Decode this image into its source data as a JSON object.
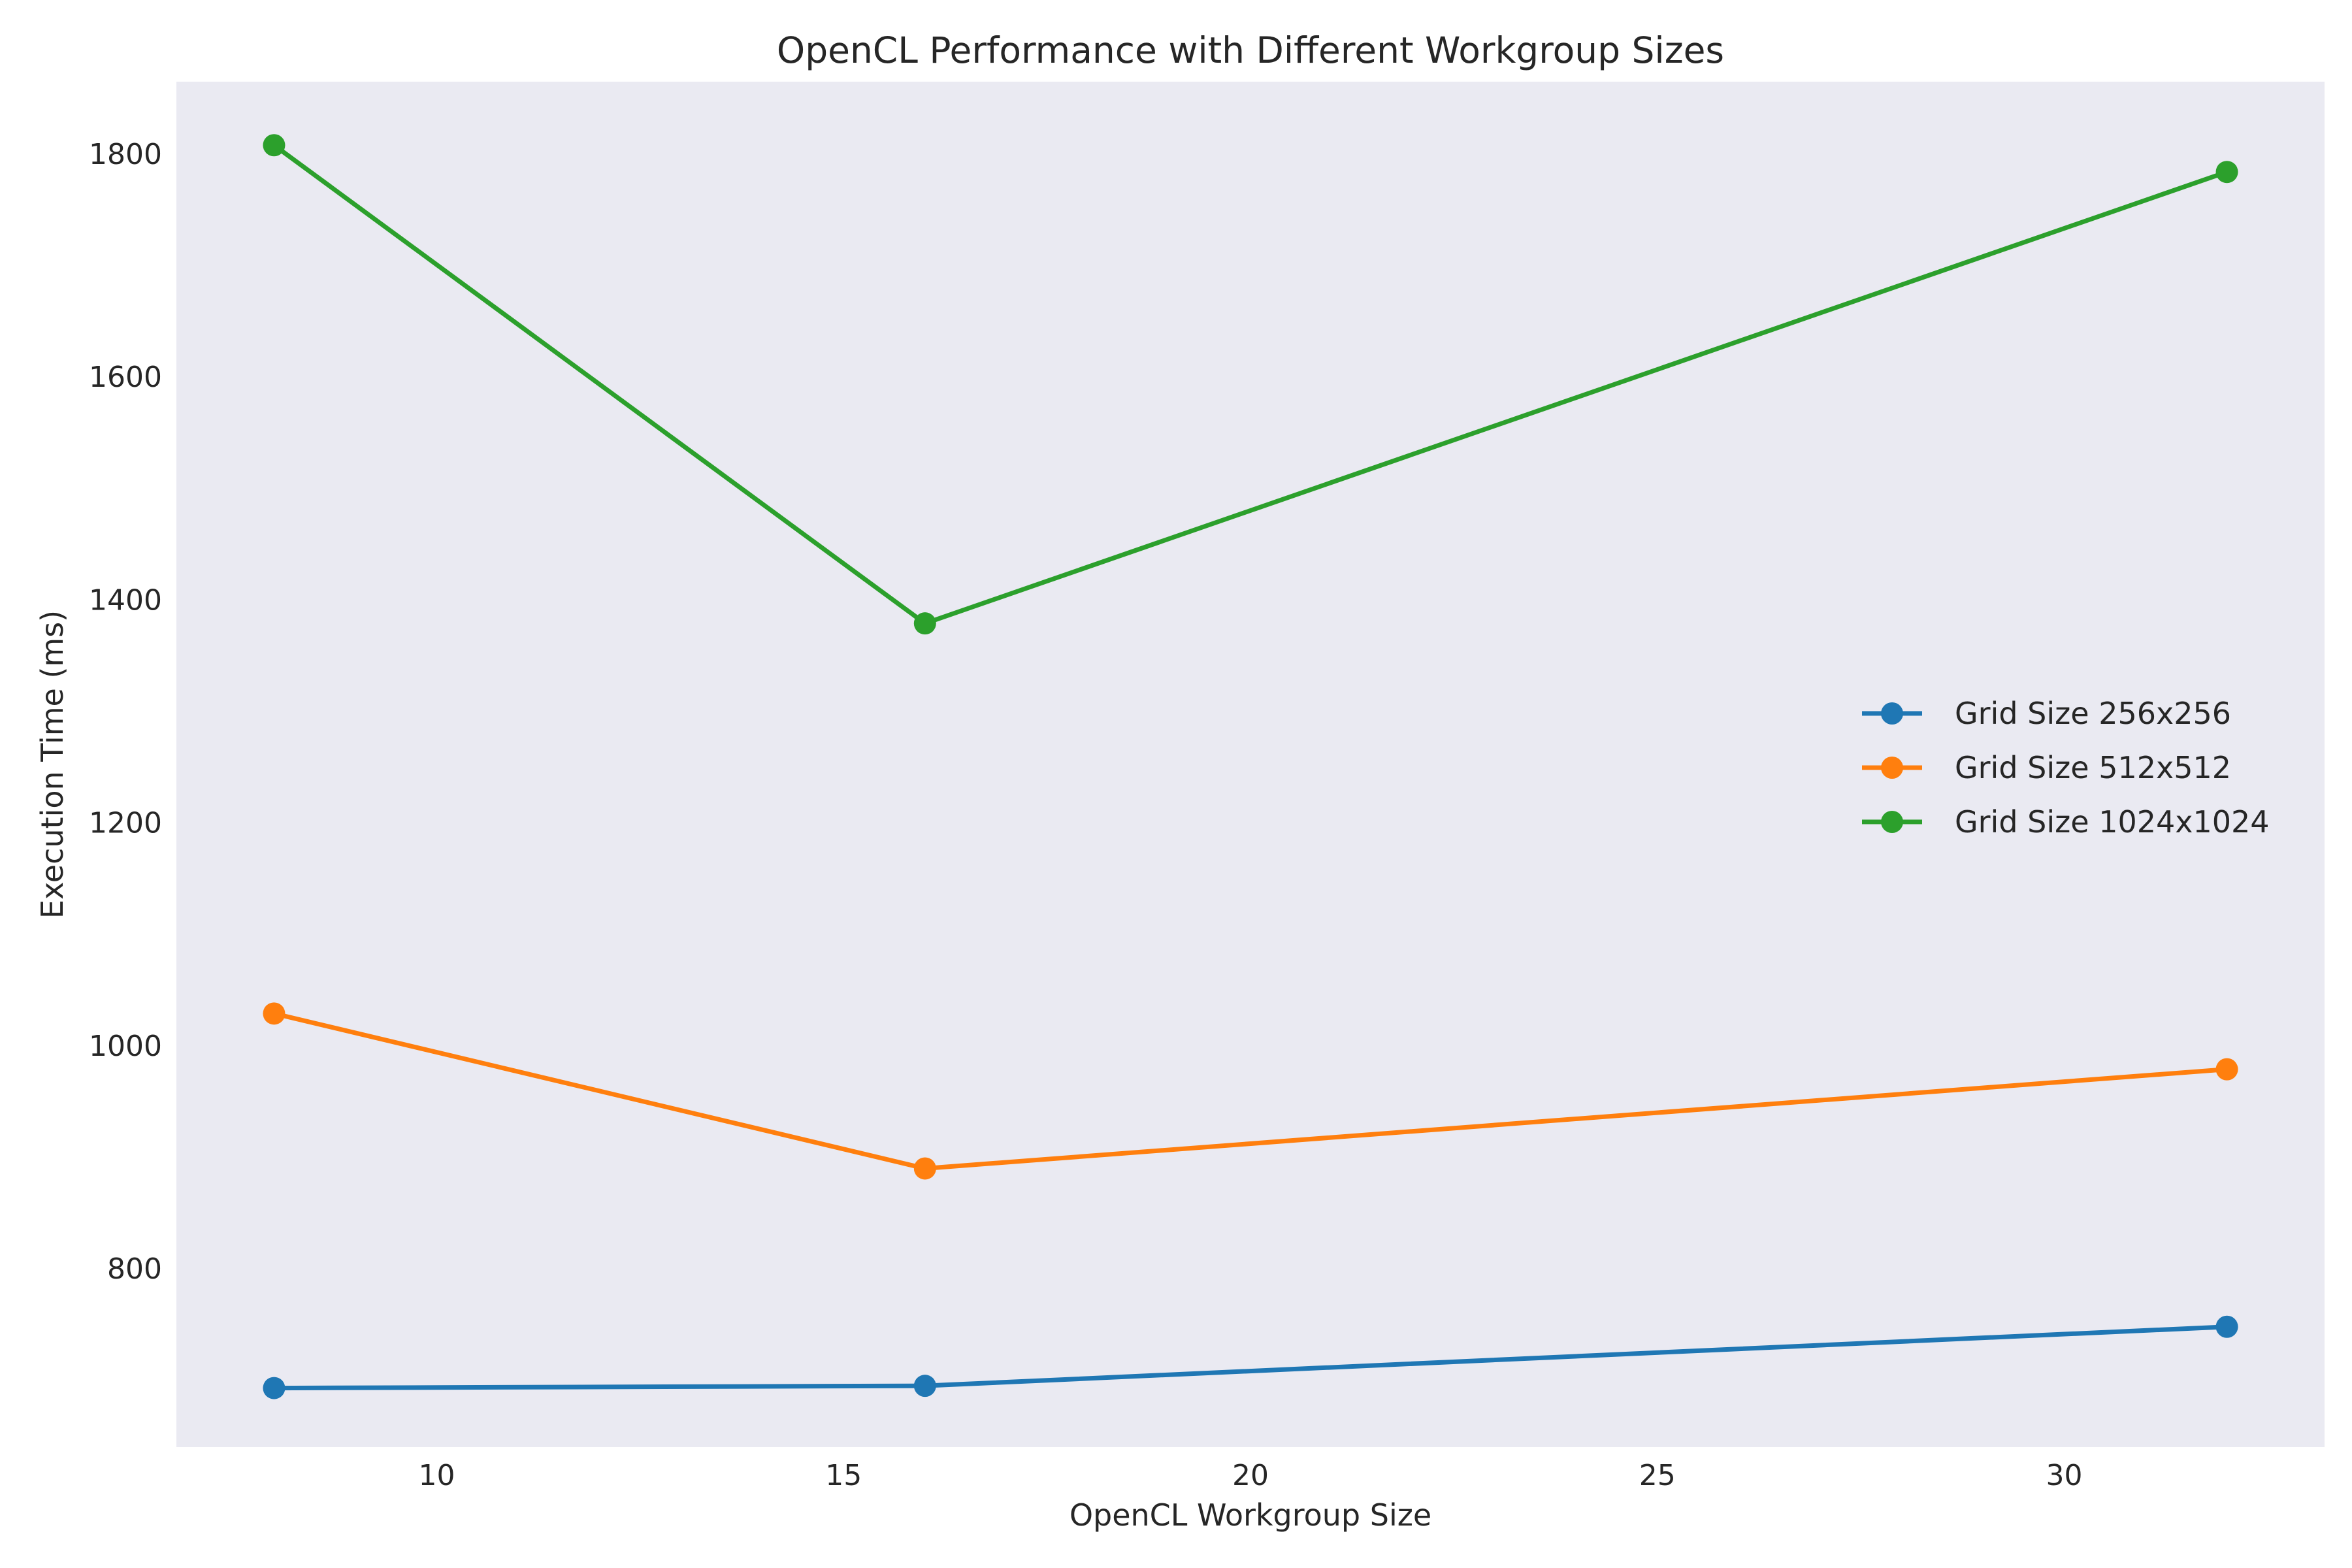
{
  "chart_data": {
    "type": "line",
    "title": "OpenCL Performance with Different Workgroup Sizes",
    "xlabel": "OpenCL Workgroup Size",
    "ylabel": "Execution Time (ms)",
    "x": [
      8,
      16,
      32
    ],
    "xlim": [
      6.8,
      33.2
    ],
    "ylim": [
      640,
      1865
    ],
    "xticks": [
      10,
      15,
      20,
      25,
      30
    ],
    "yticks": [
      800,
      1000,
      1200,
      1400,
      1600,
      1800
    ],
    "xtick_labels": [
      "10",
      "15",
      "20",
      "25",
      "30"
    ],
    "ytick_labels": [
      "800",
      "1000",
      "1200",
      "1400",
      "1600",
      "1800"
    ],
    "grid": false,
    "plot_background": "#eaeaf2",
    "legend_position": "center-right",
    "series": [
      {
        "name": "Grid Size 256x256",
        "color": "#1f77b4",
        "values": [
          693,
          695,
          748
        ]
      },
      {
        "name": "Grid Size 512x512",
        "color": "#ff7f0e",
        "values": [
          1029,
          890,
          979
        ]
      },
      {
        "name": "Grid Size 1024x1024",
        "color": "#2ca02c",
        "values": [
          1808,
          1379,
          1784
        ]
      }
    ]
  }
}
